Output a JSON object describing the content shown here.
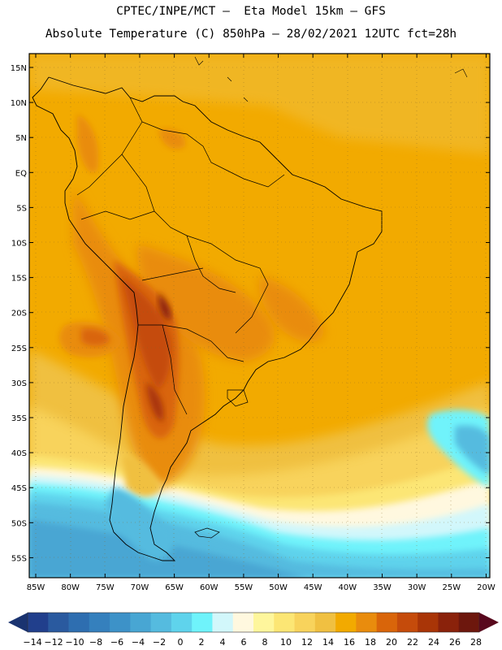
{
  "header": {
    "line1": "CPTEC/INPE/MCT –  Eta Model 15km – GFS",
    "line2": "Absolute Temperature (C) 850hPa – 28/02/2021 12UTC fct=28h"
  },
  "map": {
    "lat_labels": [
      "15N",
      "10N",
      "5N",
      "EQ",
      "5S",
      "10S",
      "15S",
      "20S",
      "25S",
      "30S",
      "35S",
      "40S",
      "45S",
      "50S",
      "55S"
    ],
    "lon_labels": [
      "85W",
      "80W",
      "75W",
      "70W",
      "65W",
      "60W",
      "55W",
      "50W",
      "45W",
      "40W",
      "35W",
      "30W",
      "25W",
      "20W"
    ]
  },
  "colorbar": {
    "labels": [
      "-14",
      "-12",
      "-10",
      "-8",
      "-6",
      "-4",
      "-2",
      "0",
      "2",
      "4",
      "6",
      "8",
      "10",
      "12",
      "14",
      "16",
      "18",
      "20",
      "22",
      "24",
      "26",
      "28"
    ],
    "colors": [
      "#213f8c",
      "#2a5a9f",
      "#2e6eb0",
      "#3580bd",
      "#3d92c8",
      "#48a6d3",
      "#55bbdf",
      "#5fd3ec",
      "#6ff3fb",
      "#d2f7fb",
      "#fff8df",
      "#fef69c",
      "#fce674",
      "#f8d35c",
      "#f0c041",
      "#f2aa00",
      "#e98c0d",
      "#d9650a",
      "#c54b0b",
      "#a93507",
      "#8a220b",
      "#6d170d"
    ],
    "low_arrow_color": "#1a3370",
    "high_arrow_color": "#58081d"
  }
}
